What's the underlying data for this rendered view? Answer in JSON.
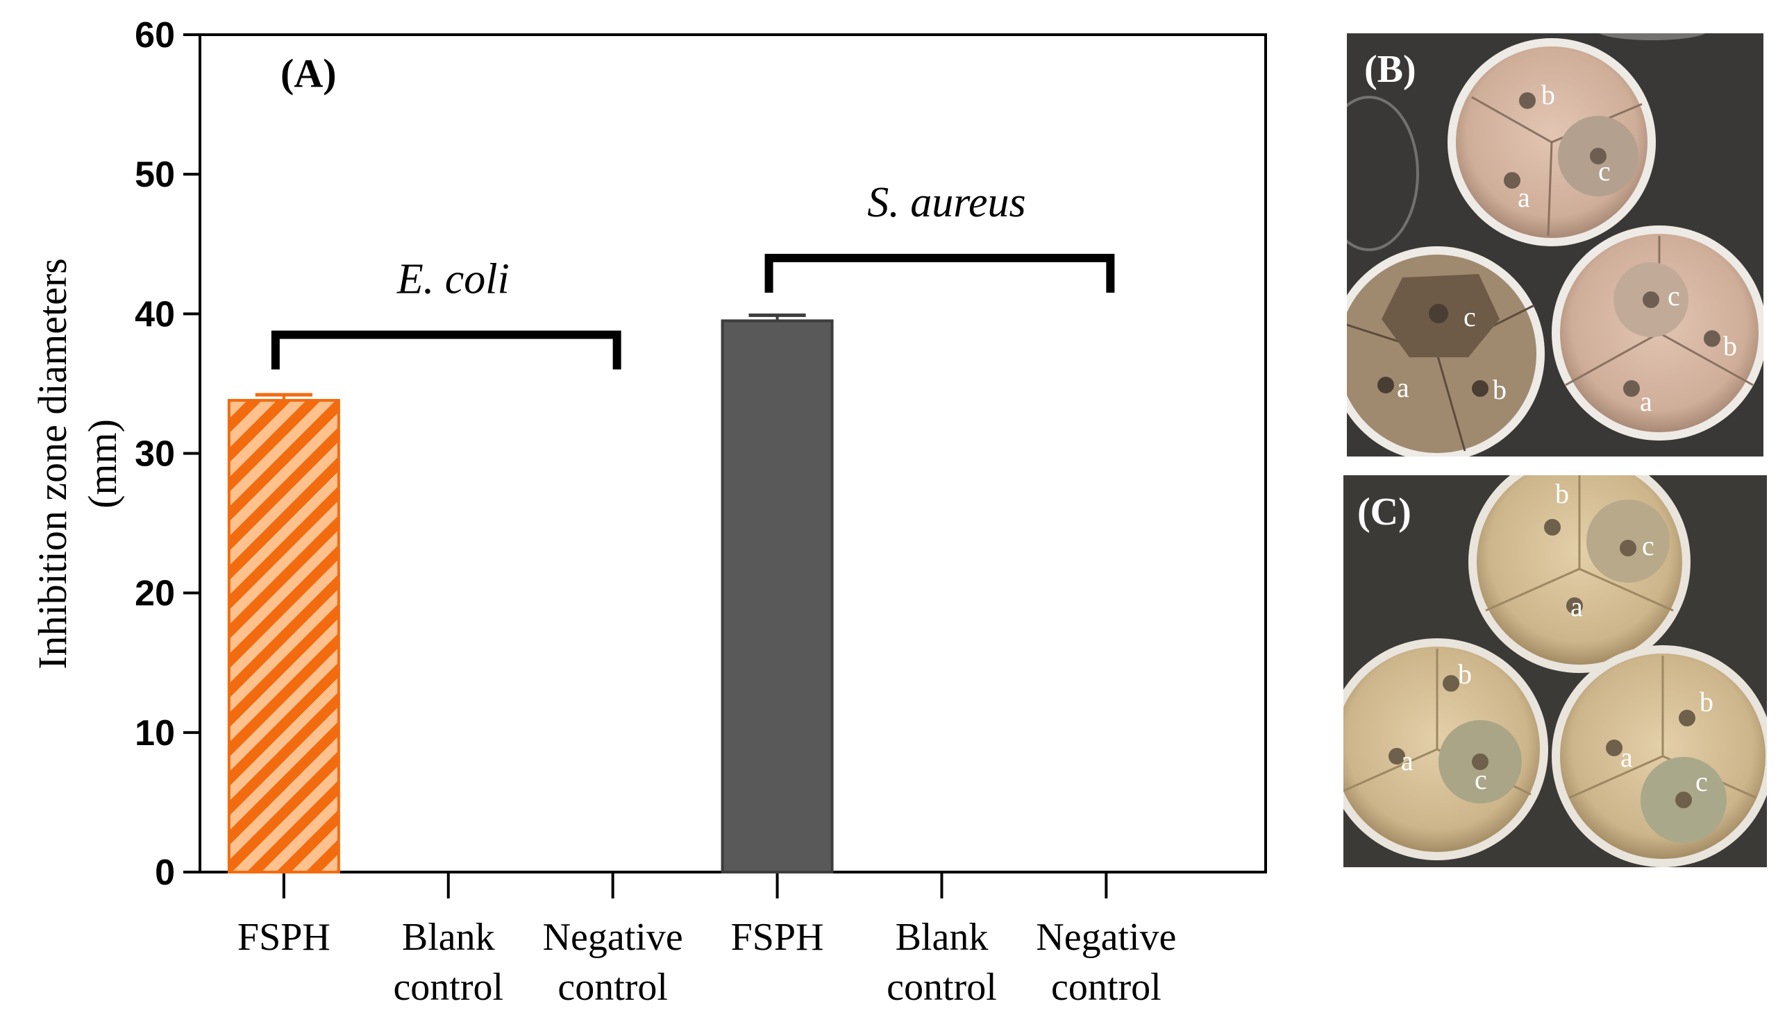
{
  "chart_data": {
    "type": "bar",
    "panel_label": "(A)",
    "ylabel": "Inhibition zone diameters (mm)",
    "ylabel_lines": [
      "Inhibition zone diameters",
      "(mm)"
    ],
    "ylim": [
      0,
      60
    ],
    "yticks": [
      0,
      10,
      20,
      30,
      40,
      50,
      60
    ],
    "grid": false,
    "categories": [
      {
        "lines": [
          "FSPH"
        ],
        "group": "E. coli"
      },
      {
        "lines": [
          "Blank",
          "control"
        ],
        "group": "E. coli"
      },
      {
        "lines": [
          "Negative",
          "control"
        ],
        "group": "E. coli"
      },
      {
        "lines": [
          "FSPH"
        ],
        "group": "S. aureus"
      },
      {
        "lines": [
          "Blank",
          "control"
        ],
        "group": "S. aureus"
      },
      {
        "lines": [
          "Negative",
          "control"
        ],
        "group": "S. aureus"
      }
    ],
    "values": [
      33.8,
      0,
      0,
      39.5,
      0,
      0
    ],
    "errors": [
      0.4,
      0,
      0,
      0.4,
      0,
      0
    ],
    "groups": [
      {
        "name": "E. coli",
        "first": 0,
        "last": 2,
        "bracket_y": 38.5
      },
      {
        "name": "S. aureus",
        "first": 3,
        "last": 5,
        "bracket_y": 44
      }
    ],
    "styles": [
      {
        "fill": "#ffc28f",
        "stripe": "#f26b0f",
        "stroke": "#f26b0f",
        "pattern": "hatch"
      },
      null,
      null,
      {
        "fill": "#595959",
        "stroke": "#3d3d3d",
        "pattern": "solid"
      },
      null,
      null
    ]
  },
  "photos": [
    {
      "label": "(B)",
      "dishes": [
        {
          "wells": [
            {
              "letter": "b"
            },
            {
              "letter": "c"
            },
            {
              "letter": "a"
            }
          ]
        },
        {
          "wells": [
            {
              "letter": "c"
            },
            {
              "letter": "a"
            },
            {
              "letter": "b"
            }
          ]
        },
        {
          "wells": [
            {
              "letter": "c"
            },
            {
              "letter": "b"
            },
            {
              "letter": "a"
            }
          ]
        }
      ]
    },
    {
      "label": "(C)",
      "dishes": [
        {
          "wells": [
            {
              "letter": "b"
            },
            {
              "letter": "c"
            },
            {
              "letter": "a"
            }
          ]
        },
        {
          "wells": [
            {
              "letter": "b"
            },
            {
              "letter": "a"
            },
            {
              "letter": "c"
            }
          ]
        },
        {
          "wells": [
            {
              "letter": "b"
            },
            {
              "letter": "a"
            },
            {
              "letter": "c"
            }
          ]
        }
      ]
    }
  ],
  "colors": {
    "axis": "#000000",
    "photo_background": "#3a3836",
    "agar_b": "#d6b6a2",
    "agar_c": "#d4bf98"
  }
}
